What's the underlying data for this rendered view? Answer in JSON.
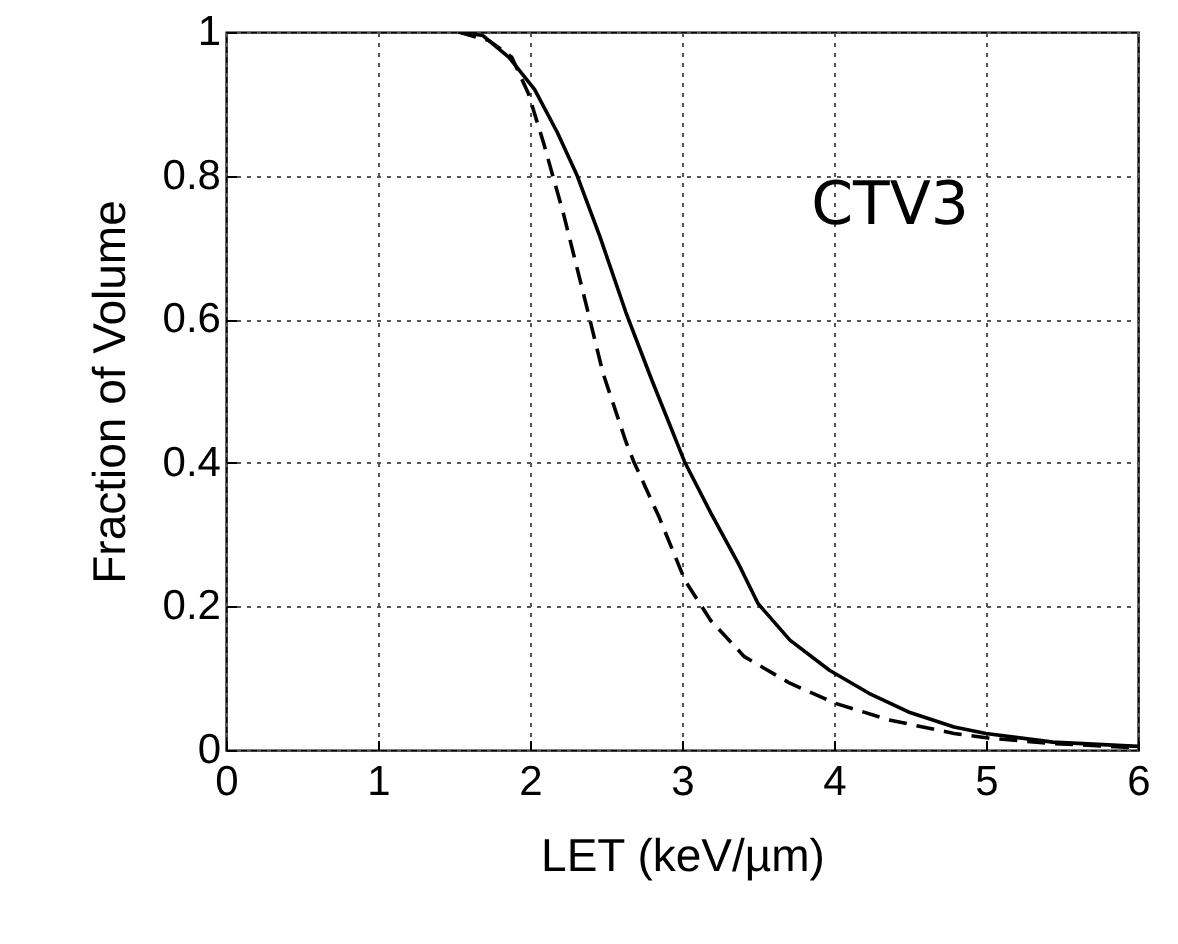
{
  "chart_data": {
    "type": "line",
    "xlabel": "LET (keV/µm)",
    "ylabel": "Fraction of Volume",
    "annotations": [
      "CTV3"
    ],
    "xlim": [
      0,
      6
    ],
    "ylim": [
      0,
      1
    ],
    "xticks": [
      0,
      1,
      2,
      3,
      4,
      5,
      6
    ],
    "yticks": [
      0,
      0.2,
      0.4,
      0.6,
      0.8,
      1
    ],
    "grid": true,
    "marker": "none",
    "series": [
      {
        "color": "#000000",
        "line_style": "solid",
        "x": [
          1.53,
          1.69,
          1.86,
          2.03,
          2.18,
          2.31,
          2.46,
          2.63,
          2.8,
          3.02,
          3.19,
          3.37,
          3.5,
          3.71,
          3.97,
          4.23,
          4.49,
          4.79,
          5.0,
          5.44,
          6.0
        ],
        "values": [
          1,
          0.995,
          0.965,
          0.92,
          0.86,
          0.8,
          0.715,
          0.61,
          0.516,
          0.4,
          0.33,
          0.26,
          0.204,
          0.153,
          0.111,
          0.079,
          0.053,
          0.032,
          0.023,
          0.011,
          0.005
        ]
      },
      {
        "color": "#000000",
        "line_style": "dashed",
        "x": [
          1.53,
          1.73,
          1.88,
          1.99,
          2.09,
          2.22,
          2.37,
          2.48,
          2.63,
          2.68,
          2.85,
          3.02,
          3.19,
          3.41,
          3.71,
          4.01,
          4.36,
          4.79,
          5.0,
          5.44,
          6.0
        ],
        "values": [
          1,
          0.988,
          0.965,
          0.914,
          0.845,
          0.747,
          0.62,
          0.525,
          0.43,
          0.403,
          0.324,
          0.236,
          0.18,
          0.13,
          0.093,
          0.065,
          0.042,
          0.023,
          0.017,
          0.009,
          0.003
        ]
      }
    ]
  }
}
